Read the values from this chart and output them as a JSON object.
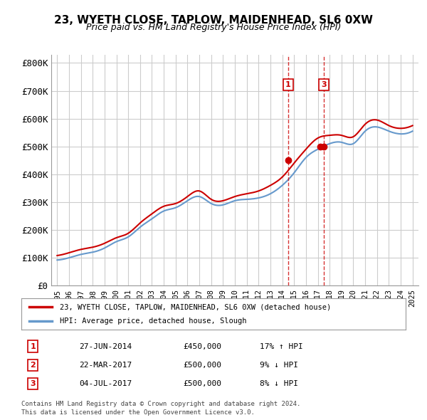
{
  "title": "23, WYETH CLOSE, TAPLOW, MAIDENHEAD, SL6 0XW",
  "subtitle": "Price paid vs. HM Land Registry's House Price Index (HPI)",
  "ylabel": "",
  "yticks": [
    0,
    100000,
    200000,
    300000,
    400000,
    500000,
    600000,
    700000,
    800000
  ],
  "ytick_labels": [
    "£0",
    "£100K",
    "£200K",
    "£300K",
    "£400K",
    "£500K",
    "£600K",
    "£700K",
    "£800K"
  ],
  "xlim_start": 1994.5,
  "xlim_end": 2025.5,
  "ylim_min": 0,
  "ylim_max": 830000,
  "background_color": "#ffffff",
  "grid_color": "#cccccc",
  "legend_line1": "23, WYETH CLOSE, TAPLOW, MAIDENHEAD, SL6 0XW (detached house)",
  "legend_line2": "HPI: Average price, detached house, Slough",
  "line1_color": "#cc0000",
  "line2_color": "#6699cc",
  "transaction1_date": "27-JUN-2014",
  "transaction1_price": "£450,000",
  "transaction1_hpi": "17% ↑ HPI",
  "transaction1_x": 2014.49,
  "transaction1_y": 450000,
  "transaction2_date": "22-MAR-2017",
  "transaction2_price": "£500,000",
  "transaction2_hpi": "9% ↓ HPI",
  "transaction2_x": 2017.22,
  "transaction2_y": 500000,
  "transaction3_date": "04-JUL-2017",
  "transaction3_price": "£500,000",
  "transaction3_hpi": "8% ↓ HPI",
  "transaction3_x": 2017.5,
  "transaction3_y": 500000,
  "footer1": "Contains HM Land Registry data © Crown copyright and database right 2024.",
  "footer2": "This data is licensed under the Open Government Licence v3.0."
}
